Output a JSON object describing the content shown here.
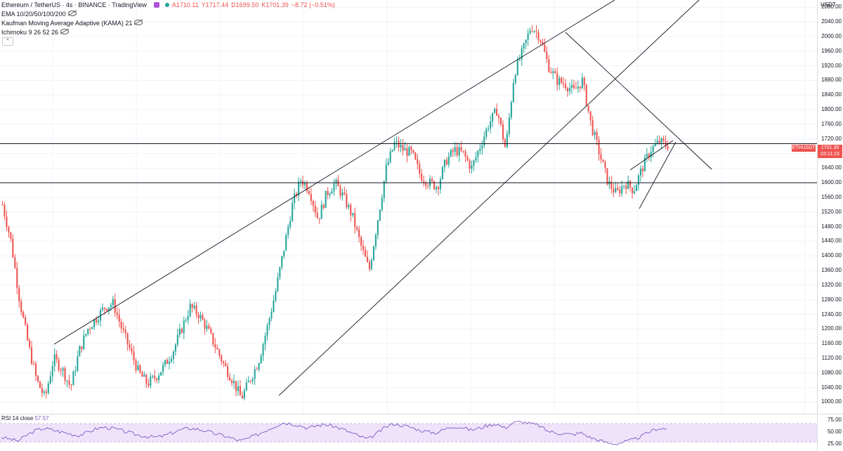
{
  "legend": {
    "symbol": "Ethereum / TetherUS · 4s · BINANCE · TradingView",
    "open": "A1710.11",
    "high": "Y1717.44",
    "low": "D1699.50",
    "close": "K1701.39",
    "change": "−8.72 (−0.51%)",
    "indicators": [
      "EMA 10/20/50/100/200",
      "Kaufman Moving Average Adaptive (KAMA) 21",
      "Ichimoku 9 26 52 26"
    ]
  },
  "currency": "USDT",
  "price_axis": {
    "ticks": [
      "2080.00",
      "2040.00",
      "2000.00",
      "1960.00",
      "1920.00",
      "1880.00",
      "1840.00",
      "1800.00",
      "1760.00",
      "1720.00",
      "1680.00",
      "1640.00",
      "1600.00",
      "1560.00",
      "1520.00",
      "1480.00",
      "1440.00",
      "1400.00",
      "1360.00",
      "1320.00",
      "1280.00",
      "1240.00",
      "1200.00",
      "1160.00",
      "1120.00",
      "1080.00",
      "1040.00",
      "1000.00"
    ],
    "min": 970,
    "max": 2100
  },
  "last_price": {
    "symbol": "ETHUSDT",
    "value": "1701.39",
    "countdown": "03:11:23"
  },
  "rsi": {
    "label": "RSI 14 close",
    "value": "57.57",
    "ticks": [
      "75.00",
      "50.00",
      "25.00"
    ]
  },
  "colors": {
    "up": "#26a69a",
    "down": "#ef5350",
    "rsi_line": "#7e57c2",
    "rsi_band": "#efe3fb"
  },
  "chart_data": {
    "type": "candlestick",
    "y_range": [
      970,
      2100
    ],
    "path": [
      1540,
      1440,
      1280,
      1160,
      1060,
      1010,
      1120,
      1090,
      1040,
      1140,
      1200,
      1230,
      1260,
      1270,
      1200,
      1140,
      1080,
      1050,
      1070,
      1100,
      1140,
      1200,
      1260,
      1240,
      1200,
      1150,
      1100,
      1060,
      1010,
      1060,
      1110,
      1200,
      1300,
      1420,
      1540,
      1610,
      1580,
      1500,
      1570,
      1600,
      1560,
      1510,
      1430,
      1360,
      1500,
      1640,
      1710,
      1690,
      1680,
      1620,
      1600,
      1590,
      1660,
      1690,
      1680,
      1640,
      1700,
      1760,
      1800,
      1690,
      1900,
      1960,
      2030,
      2000,
      1920,
      1880,
      1870,
      1850,
      1880,
      1760,
      1680,
      1600,
      1570,
      1600,
      1580,
      1640,
      1690,
      1712,
      1702
    ],
    "horizontal_levels": [
      1707,
      1600
    ],
    "rsi_path": [
      40,
      36,
      32,
      45,
      55,
      60,
      56,
      52,
      48,
      44,
      50,
      58,
      62,
      60,
      55,
      50,
      45,
      42,
      40,
      43,
      50,
      56,
      60,
      58,
      54,
      48,
      44,
      38,
      32,
      38,
      46,
      55,
      64,
      72,
      70,
      66,
      60,
      66,
      68,
      64,
      58,
      50,
      42,
      36,
      48,
      62,
      70,
      66,
      62,
      56,
      52,
      50,
      58,
      64,
      62,
      56,
      60,
      66,
      70,
      60,
      72,
      74,
      70,
      66,
      54,
      50,
      48,
      46,
      50,
      40,
      34,
      28,
      26,
      30,
      34,
      42,
      52,
      60,
      58
    ]
  }
}
